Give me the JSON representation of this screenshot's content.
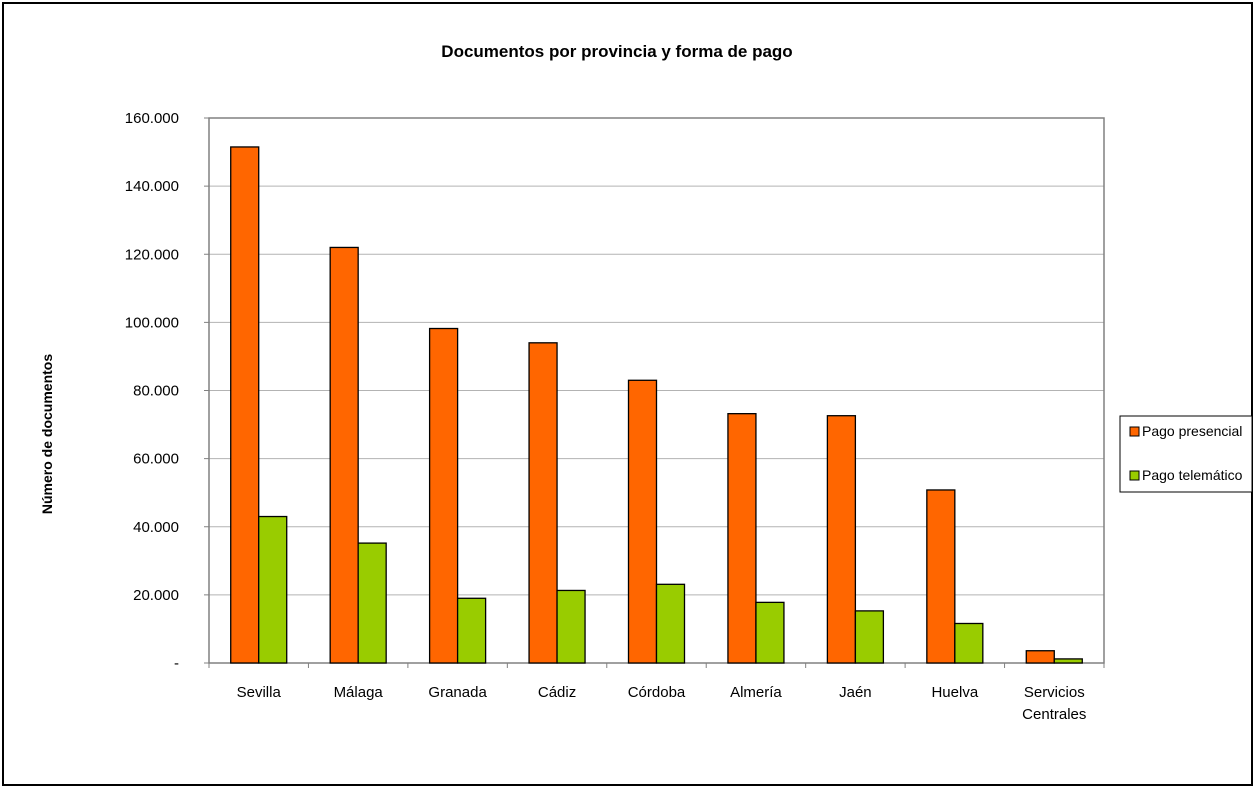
{
  "chart_data": {
    "type": "bar",
    "title": "Documentos por provincia y forma de pago",
    "xlabel": "",
    "ylabel": "Número de documentos",
    "categories": [
      "Sevilla",
      "Málaga",
      "Granada",
      "Cádiz",
      "Córdoba",
      "Almería",
      "Jaén",
      "Huelva",
      "Servicios Centrales"
    ],
    "category_lines": [
      [
        "Sevilla"
      ],
      [
        "Málaga"
      ],
      [
        "Granada"
      ],
      [
        "Cádiz"
      ],
      [
        "Córdoba"
      ],
      [
        "Almería"
      ],
      [
        "Jaén"
      ],
      [
        "Huelva"
      ],
      [
        "Servicios",
        "Centrales"
      ]
    ],
    "series": [
      {
        "name": "Pago presencial",
        "color": "#ff6600",
        "values": [
          151500,
          122000,
          98200,
          94000,
          83000,
          73200,
          72600,
          50800,
          3600
        ]
      },
      {
        "name": "Pago telemático",
        "color": "#99cc00",
        "values": [
          43000,
          35200,
          19000,
          21300,
          23100,
          17800,
          15300,
          11600,
          1200
        ]
      }
    ],
    "ylim": [
      0,
      160000
    ],
    "yticks": [
      {
        "value": 0,
        "label": "-"
      },
      {
        "value": 20000,
        "label": "20.000"
      },
      {
        "value": 40000,
        "label": "40.000"
      },
      {
        "value": 60000,
        "label": "60.000"
      },
      {
        "value": 80000,
        "label": "80.000"
      },
      {
        "value": 100000,
        "label": "100.000"
      },
      {
        "value": 120000,
        "label": "120.000"
      },
      {
        "value": 140000,
        "label": "140.000"
      },
      {
        "value": 160000,
        "label": "160.000"
      }
    ],
    "grid": true,
    "legend_position": "right",
    "colors": {
      "gridline": "#b3b3b3",
      "frame": "#808080",
      "bar_outline": "#000000"
    }
  }
}
